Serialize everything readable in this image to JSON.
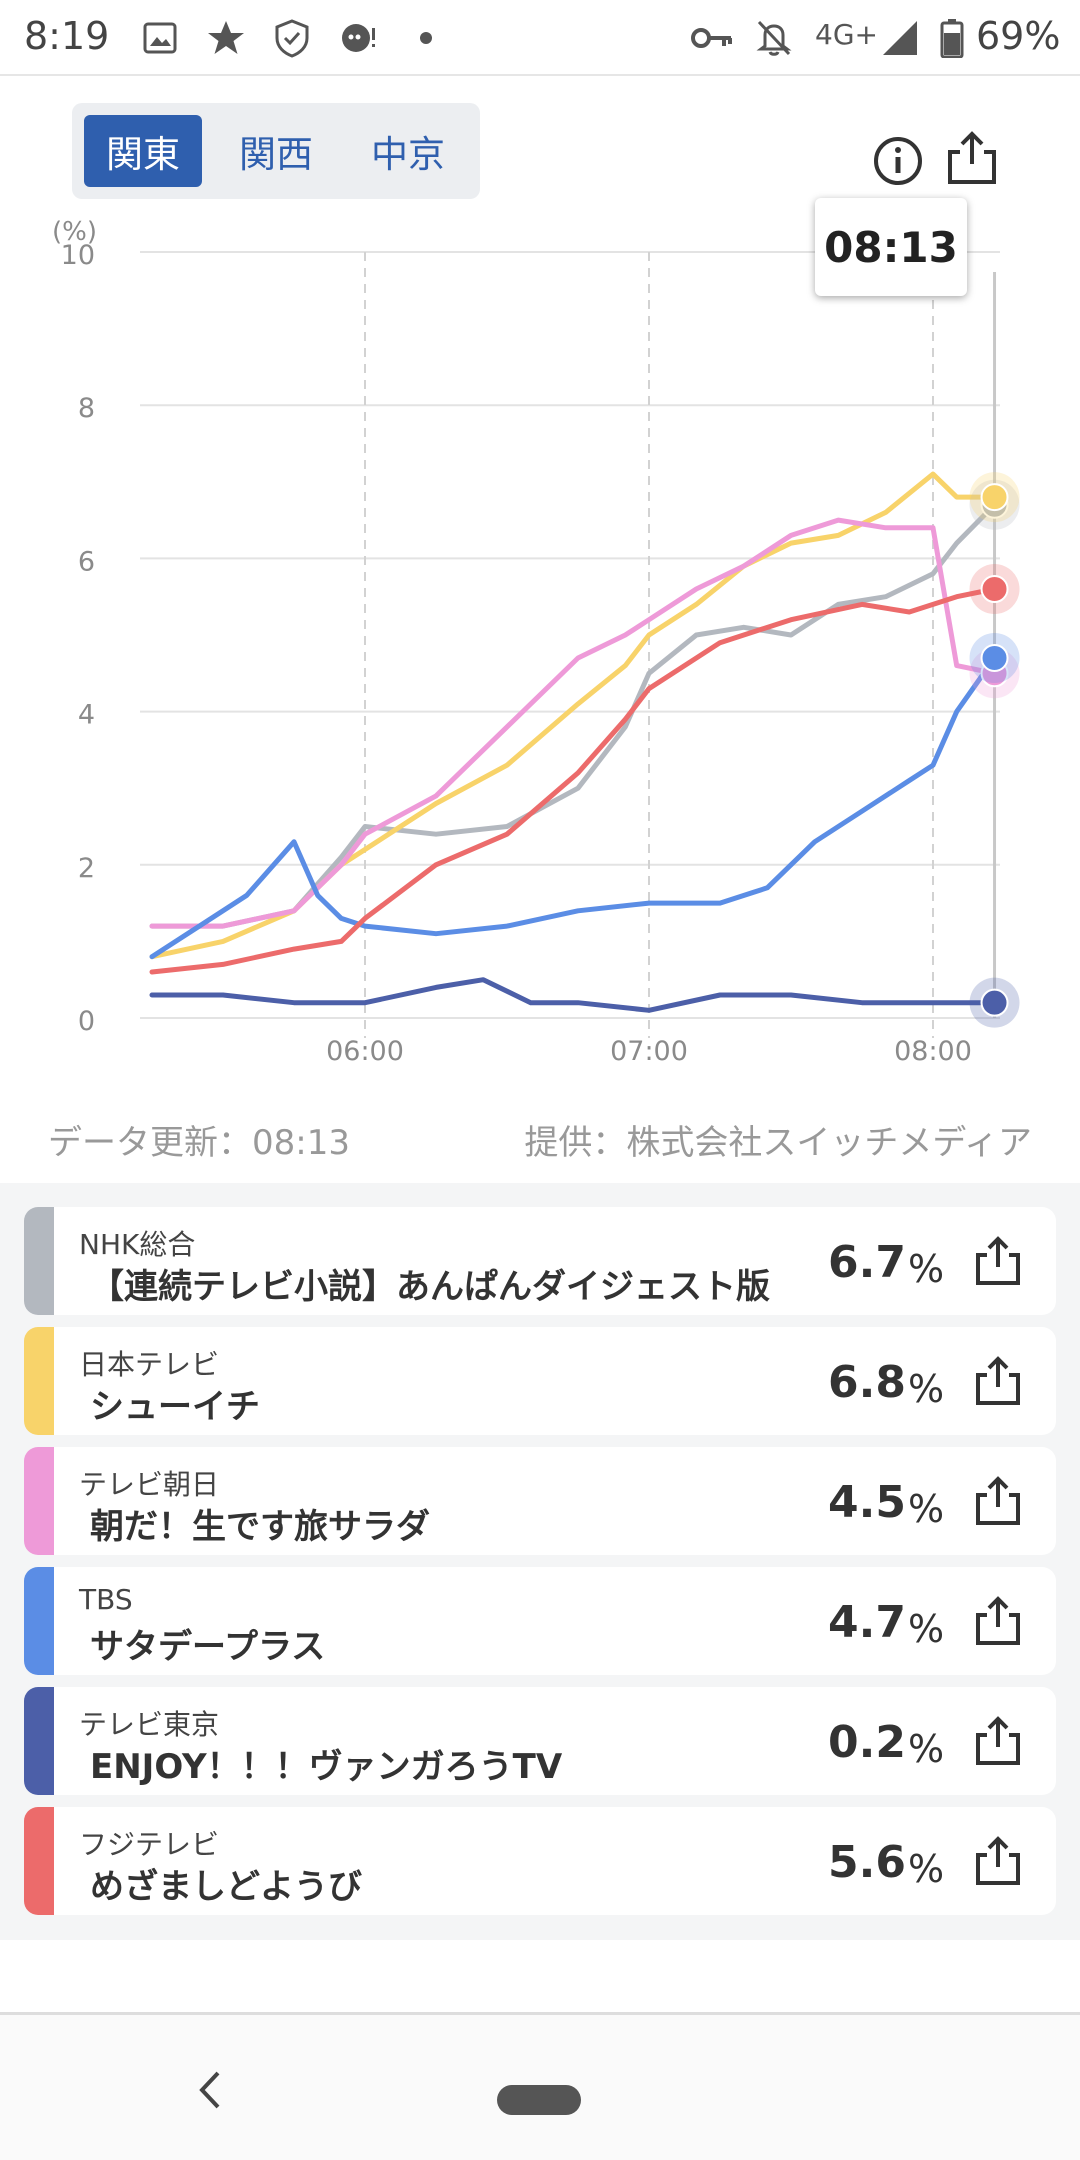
{
  "status_bar": {
    "time": "8:19",
    "icons": [
      "image-icon",
      "star-icon",
      "shield-icon",
      "assistant-icon",
      "dot-icon",
      "vpn-key-icon",
      "bell-off-icon",
      "signal-icon",
      "battery-icon"
    ],
    "network": "4G+",
    "battery": "69%"
  },
  "region_tabs": [
    {
      "label": "関東",
      "active": true
    },
    {
      "label": "関西",
      "active": false
    },
    {
      "label": "中京",
      "active": false
    }
  ],
  "tooltip_time": "08:13",
  "chart_data": {
    "type": "line",
    "y_unit": "(%)",
    "ylim": [
      0,
      10
    ],
    "yticks": [
      "10",
      "8",
      "6",
      "4",
      "2",
      "0"
    ],
    "xticks": [
      "06:00",
      "07:00",
      "08:00"
    ],
    "x_range": [
      "05:15",
      "08:13"
    ],
    "grid": true,
    "series": [
      {
        "name": "NHK総合",
        "color": "#b3b8bf",
        "x": [
          "05:15",
          "05:30",
          "05:45",
          "05:55",
          "06:00",
          "06:15",
          "06:30",
          "06:45",
          "06:55",
          "07:00",
          "07:10",
          "07:20",
          "07:30",
          "07:40",
          "07:50",
          "08:00",
          "08:05",
          "08:13"
        ],
        "y": [
          1.2,
          1.2,
          1.4,
          2.1,
          2.5,
          2.4,
          2.5,
          3.0,
          3.8,
          4.5,
          5.0,
          5.1,
          5.0,
          5.4,
          5.5,
          5.8,
          6.2,
          6.7
        ]
      },
      {
        "name": "日本テレビ",
        "color": "#f8d36a",
        "x": [
          "05:15",
          "05:30",
          "05:45",
          "05:55",
          "06:00",
          "06:15",
          "06:30",
          "06:45",
          "06:55",
          "07:00",
          "07:10",
          "07:20",
          "07:30",
          "07:40",
          "07:50",
          "08:00",
          "08:05",
          "08:13"
        ],
        "y": [
          0.8,
          1.0,
          1.4,
          2.0,
          2.2,
          2.8,
          3.3,
          4.1,
          4.6,
          5.0,
          5.4,
          5.9,
          6.2,
          6.3,
          6.6,
          7.1,
          6.8,
          6.8
        ]
      },
      {
        "name": "テレビ朝日",
        "color": "#ee9ad8",
        "x": [
          "05:15",
          "05:30",
          "05:45",
          "05:55",
          "06:00",
          "06:15",
          "06:30",
          "06:45",
          "06:55",
          "07:00",
          "07:10",
          "07:20",
          "07:30",
          "07:40",
          "07:50",
          "08:00",
          "08:05",
          "08:13"
        ],
        "y": [
          1.2,
          1.2,
          1.4,
          2.0,
          2.4,
          2.9,
          3.8,
          4.7,
          5.0,
          5.2,
          5.6,
          5.9,
          6.3,
          6.5,
          6.4,
          6.4,
          4.6,
          4.5
        ]
      },
      {
        "name": "TBS",
        "color": "#5b8de5",
        "x": [
          "05:15",
          "05:25",
          "05:35",
          "05:45",
          "05:50",
          "05:55",
          "06:00",
          "06:15",
          "06:30",
          "06:45",
          "07:00",
          "07:15",
          "07:25",
          "07:35",
          "07:45",
          "07:55",
          "08:00",
          "08:05",
          "08:13"
        ],
        "y": [
          0.8,
          1.2,
          1.6,
          2.3,
          1.6,
          1.3,
          1.2,
          1.1,
          1.2,
          1.4,
          1.5,
          1.5,
          1.7,
          2.3,
          2.7,
          3.1,
          3.3,
          4.0,
          4.7
        ]
      },
      {
        "name": "テレビ東京",
        "color": "#4c5fa8",
        "x": [
          "05:15",
          "05:30",
          "05:45",
          "06:00",
          "06:15",
          "06:25",
          "06:35",
          "06:45",
          "07:00",
          "07:15",
          "07:30",
          "07:45",
          "08:00",
          "08:13"
        ],
        "y": [
          0.3,
          0.3,
          0.2,
          0.2,
          0.4,
          0.5,
          0.2,
          0.2,
          0.1,
          0.3,
          0.3,
          0.2,
          0.2,
          0.2
        ]
      },
      {
        "name": "フジテレビ",
        "color": "#ec6b6b",
        "x": [
          "05:15",
          "05:30",
          "05:45",
          "05:55",
          "06:00",
          "06:15",
          "06:30",
          "06:45",
          "06:55",
          "07:00",
          "07:15",
          "07:30",
          "07:45",
          "07:55",
          "08:00",
          "08:05",
          "08:13"
        ],
        "y": [
          0.6,
          0.7,
          0.9,
          1.0,
          1.3,
          2.0,
          2.4,
          3.2,
          3.9,
          4.3,
          4.9,
          5.2,
          5.4,
          5.3,
          5.4,
          5.5,
          5.6
        ]
      }
    ]
  },
  "data_update": "データ更新：08:13",
  "provider": "提供：株式会社スイッチメディア",
  "cards": [
    {
      "channel": "NHK総合",
      "program": "【連続テレビ小説】あんぱんダイジェスト版",
      "value": "6.7",
      "unit": "%",
      "color": "#b3b8bf"
    },
    {
      "channel": "日本テレビ",
      "program": "シューイチ",
      "value": "6.8",
      "unit": "%",
      "color": "#f8d36a"
    },
    {
      "channel": "テレビ朝日",
      "program": "朝だ！生です旅サラダ",
      "value": "4.5",
      "unit": "%",
      "color": "#ee9ad8"
    },
    {
      "channel": "TBS",
      "program": "サタデープラス",
      "value": "4.7",
      "unit": "%",
      "color": "#5b8de5"
    },
    {
      "channel": "テレビ東京",
      "program": "ENJOY！！！ヴァンガろうTV",
      "value": "0.2",
      "unit": "%",
      "color": "#4c5fa8"
    },
    {
      "channel": "フジテレビ",
      "program": "めざましどようび",
      "value": "5.6",
      "unit": "%",
      "color": "#ec6b6b"
    }
  ]
}
